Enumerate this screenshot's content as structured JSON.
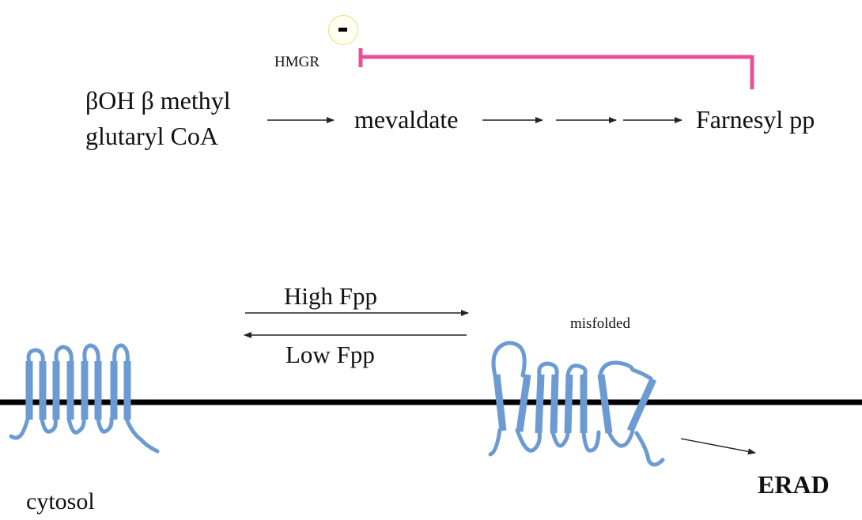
{
  "pathway": {
    "substrate_line1": "βOH β methyl",
    "substrate_line2": "glutaryl CoA",
    "enzyme": "HMGR",
    "intermediate": "mevaldate",
    "product": "Farnesyl pp",
    "inhibition_symbol": "-"
  },
  "regulation": {
    "forward_condition": "High Fpp",
    "reverse_condition": "Low Fpp",
    "misfolded_label": "misfolded",
    "degradation_label": "ERAD",
    "compartment_label": "cytosol"
  },
  "colors": {
    "inhibition_line": "#e8519a",
    "protein": "#6b9bd2",
    "membrane": "#000000",
    "arrow": "#222222"
  }
}
